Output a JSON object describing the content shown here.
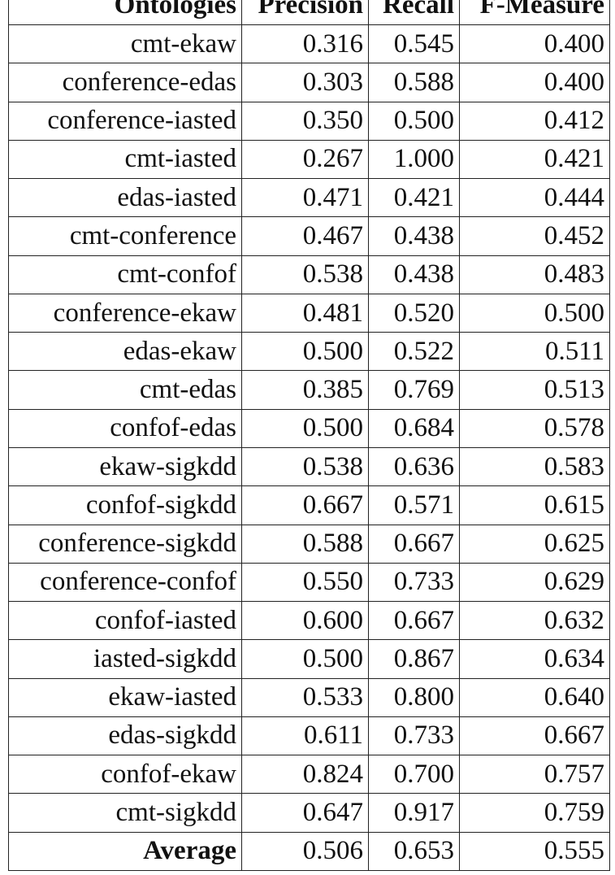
{
  "table": {
    "header": [
      "Ontologies",
      "Precision",
      "Recall",
      "F-Measure"
    ],
    "rows": [
      [
        "cmt-ekaw",
        "0.316",
        "0.545",
        "0.400"
      ],
      [
        "conference-edas",
        "0.303",
        "0.588",
        "0.400"
      ],
      [
        "conference-iasted",
        "0.350",
        "0.500",
        "0.412"
      ],
      [
        "cmt-iasted",
        "0.267",
        "1.000",
        "0.421"
      ],
      [
        "edas-iasted",
        "0.471",
        "0.421",
        "0.444"
      ],
      [
        "cmt-conference",
        "0.467",
        "0.438",
        "0.452"
      ],
      [
        "cmt-confof",
        "0.538",
        "0.438",
        "0.483"
      ],
      [
        "conference-ekaw",
        "0.481",
        "0.520",
        "0.500"
      ],
      [
        "edas-ekaw",
        "0.500",
        "0.522",
        "0.511"
      ],
      [
        "cmt-edas",
        "0.385",
        "0.769",
        "0.513"
      ],
      [
        "confof-edas",
        "0.500",
        "0.684",
        "0.578"
      ],
      [
        "ekaw-sigkdd",
        "0.538",
        "0.636",
        "0.583"
      ],
      [
        "confof-sigkdd",
        "0.667",
        "0.571",
        "0.615"
      ],
      [
        "conference-sigkdd",
        "0.588",
        "0.667",
        "0.625"
      ],
      [
        "conference-confof",
        "0.550",
        "0.733",
        "0.629"
      ],
      [
        "confof-iasted",
        "0.600",
        "0.667",
        "0.632"
      ],
      [
        "iasted-sigkdd",
        "0.500",
        "0.867",
        "0.634"
      ],
      [
        "ekaw-iasted",
        "0.533",
        "0.800",
        "0.640"
      ],
      [
        "edas-sigkdd",
        "0.611",
        "0.733",
        "0.667"
      ],
      [
        "confof-ekaw",
        "0.824",
        "0.700",
        "0.757"
      ],
      [
        "cmt-sigkdd",
        "0.647",
        "0.917",
        "0.759"
      ]
    ],
    "footer": [
      "Average",
      "0.506",
      "0.653",
      "0.555"
    ]
  }
}
